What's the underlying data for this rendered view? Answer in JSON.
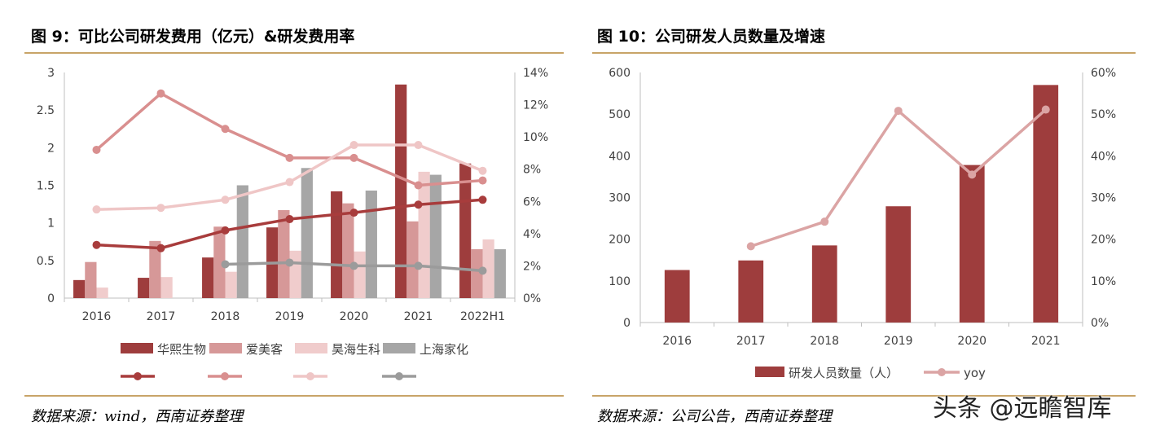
{
  "chart_data": [
    {
      "type": "bar",
      "title": "图 9：可比公司研发费用（亿元）&研发费用率",
      "source": "数据来源：wind，西南证券整理",
      "categories": [
        "2016",
        "2017",
        "2018",
        "2019",
        "2020",
        "2021",
        "2022H1"
      ],
      "ylim": [
        0,
        3
      ],
      "yticks": [
        "0",
        "0.5",
        "1",
        "1.5",
        "2",
        "2.5",
        "3"
      ],
      "y2lim": [
        0,
        14
      ],
      "y2ticks": [
        "0%",
        "2%",
        "4%",
        "6%",
        "8%",
        "10%",
        "12%",
        "14%"
      ],
      "series": [
        {
          "name": "华熙生物",
          "kind": "bar",
          "color": "#9e3d3d",
          "values": [
            0.24,
            0.27,
            0.54,
            0.94,
            1.42,
            2.84,
            1.79
          ]
        },
        {
          "name": "爱美客",
          "kind": "bar",
          "color": "#d69898",
          "values": [
            0.48,
            0.76,
            0.95,
            1.17,
            1.26,
            1.02,
            0.65
          ]
        },
        {
          "name": "昊海生科",
          "kind": "bar",
          "color": "#f0cccc",
          "values": [
            0.14,
            0.28,
            0.35,
            0.63,
            0.62,
            1.68,
            0.78
          ]
        },
        {
          "name": "上海家化",
          "kind": "bar",
          "color": "#a6a6a6",
          "values": [
            null,
            null,
            1.5,
            1.73,
            1.43,
            1.64,
            0.65
          ]
        },
        {
          "name": "",
          "kind": "line",
          "color": "#a83c3c",
          "values": [
            3.3,
            3.1,
            4.2,
            4.9,
            5.3,
            5.8,
            6.1
          ]
        },
        {
          "name": "",
          "kind": "line",
          "color": "#d98f8f",
          "values": [
            9.2,
            12.7,
            10.5,
            8.7,
            8.7,
            7.0,
            7.3
          ]
        },
        {
          "name": "",
          "kind": "line",
          "color": "#efc6c6",
          "values": [
            5.5,
            5.6,
            6.1,
            7.2,
            9.5,
            9.5,
            7.9
          ]
        },
        {
          "name": "",
          "kind": "line",
          "color": "#9b9b9b",
          "values": [
            null,
            null,
            2.1,
            2.2,
            2.0,
            2.0,
            1.7
          ]
        }
      ]
    },
    {
      "type": "bar",
      "title": "图 10：公司研发人员数量及增速",
      "source": "数据来源：公司公告，西南证券整理",
      "categories": [
        "2016",
        "2017",
        "2018",
        "2019",
        "2020",
        "2021"
      ],
      "ylim": [
        0,
        600
      ],
      "yticks": [
        "0",
        "100",
        "200",
        "300",
        "400",
        "500",
        "600"
      ],
      "y2lim": [
        0,
        60
      ],
      "y2ticks": [
        "0%",
        "10%",
        "20%",
        "30%",
        "40%",
        "50%",
        "60%"
      ],
      "series": [
        {
          "name": "研发人员数量（人）",
          "kind": "bar",
          "color": "#9e3d3d",
          "values": [
            126,
            149,
            185,
            279,
            378,
            570
          ]
        },
        {
          "name": "yoy",
          "kind": "line",
          "color": "#dba4a4",
          "values": [
            null,
            18.3,
            24.2,
            50.8,
            35.5,
            51.1
          ]
        }
      ]
    }
  ],
  "watermark": "头条 @远瞻智库"
}
